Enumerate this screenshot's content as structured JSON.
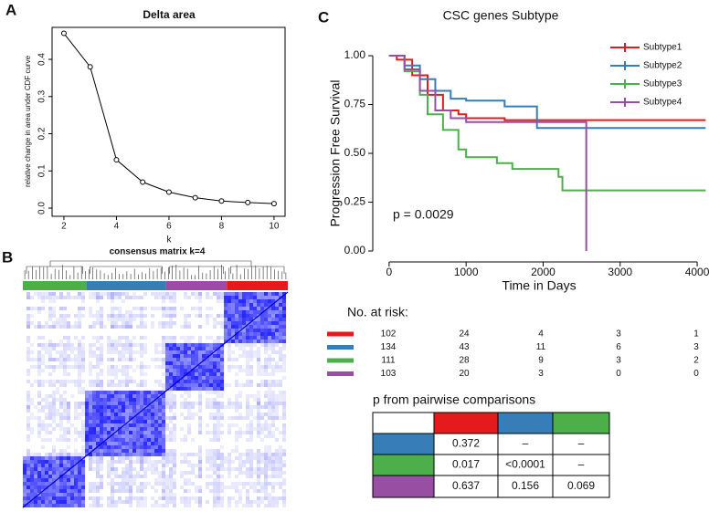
{
  "panels": {
    "a": "A",
    "b": "B",
    "c": "C"
  },
  "chart_data": [
    {
      "type": "line",
      "title": "Delta area",
      "x_label": "k",
      "y_label": "relative change in area under CDF curve",
      "x": [
        2,
        3,
        4,
        5,
        6,
        7,
        8,
        9,
        10
      ],
      "values": [
        0.47,
        0.38,
        0.13,
        0.07,
        0.043,
        0.028,
        0.019,
        0.015,
        0.012
      ],
      "xlim": [
        1.55,
        10.42
      ],
      "ylim": [
        -0.022,
        0.486
      ],
      "xticks": [
        2,
        4,
        6,
        8,
        10
      ],
      "yticks": [
        {
          "value": 0,
          "label": "0.0"
        },
        0.1,
        0.2,
        0.3,
        0.4
      ]
    },
    {
      "type": "survival",
      "title": "CSC genes Subtype",
      "x_label": "Time in Days",
      "y_label": "Progression Free Survival",
      "annotation": "p = 0.0029",
      "xlim": [
        -212,
        4118
      ],
      "ylim": [
        -0.056,
        1.075
      ],
      "xticks": [
        0,
        1000,
        2000,
        3000,
        4000
      ],
      "yticks": [
        {
          "value": 0,
          "label": "0.00"
        },
        0.25,
        {
          "value": 0.5,
          "label": "0.50"
        },
        0.75,
        {
          "value": 1,
          "label": "1.00"
        }
      ],
      "series": [
        {
          "name": "Subtype1",
          "color": "#e41a1c",
          "x": [
            0,
            100,
            100,
            300,
            300,
            500,
            500,
            700,
            700,
            900,
            900,
            1000,
            1000,
            1500,
            1500,
            4110
          ],
          "values": [
            1,
            1,
            0.98,
            0.98,
            0.9,
            0.9,
            0.8,
            0.8,
            0.72,
            0.72,
            0.7,
            0.7,
            0.68,
            0.68,
            0.67,
            0.67
          ]
        },
        {
          "name": "Subtype2",
          "color": "#377eb8",
          "x": [
            0,
            200,
            200,
            400,
            400,
            600,
            600,
            800,
            800,
            1000,
            1000,
            1500,
            1500,
            1920,
            1920,
            4110
          ],
          "values": [
            1,
            1,
            0.95,
            0.95,
            0.88,
            0.88,
            0.82,
            0.82,
            0.78,
            0.78,
            0.77,
            0.77,
            0.74,
            0.74,
            0.63,
            0.63
          ]
        },
        {
          "name": "Subtype3",
          "color": "#4daf4a",
          "x": [
            0,
            200,
            200,
            400,
            400,
            500,
            500,
            700,
            700,
            900,
            900,
            1000,
            1000,
            1400,
            1400,
            1600,
            1600,
            2200,
            2200,
            2250,
            2250,
            4110
          ],
          "values": [
            1,
            1,
            0.92,
            0.92,
            0.8,
            0.8,
            0.7,
            0.7,
            0.62,
            0.62,
            0.52,
            0.52,
            0.48,
            0.48,
            0.45,
            0.45,
            0.42,
            0.42,
            0.38,
            0.38,
            0.31,
            0.31
          ]
        },
        {
          "name": "Subtype4",
          "color": "#984ea3",
          "x": [
            0,
            200,
            200,
            400,
            400,
            600,
            600,
            800,
            800,
            1000,
            1000,
            2560,
            2560
          ],
          "values": [
            1,
            1,
            0.93,
            0.93,
            0.82,
            0.82,
            0.72,
            0.72,
            0.68,
            0.68,
            0.66,
            0.66,
            0
          ]
        }
      ]
    }
  ],
  "heatmap": {
    "title": "consensus matrix k=4"
  },
  "risk_table": {
    "title": "No. at risk:",
    "rows": [
      [
        102,
        24,
        4,
        3,
        1
      ],
      [
        134,
        43,
        11,
        6,
        3
      ],
      [
        111,
        28,
        9,
        3,
        2
      ],
      [
        103,
        20,
        3,
        0,
        0
      ]
    ]
  },
  "pairwise_table": {
    "title": "p from pairwise comparisons",
    "rows": [
      [
        "0.372",
        "–",
        "–"
      ],
      [
        "0.017",
        "<0.0001",
        "–"
      ],
      [
        "0.637",
        "0.156",
        "0.069"
      ]
    ]
  }
}
